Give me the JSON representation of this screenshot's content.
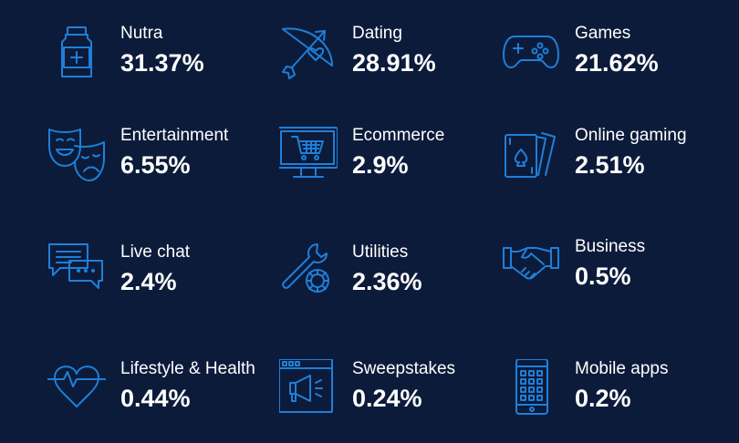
{
  "accent_color": "#1f7fd8",
  "background_color": "#0c1b3a",
  "categories": [
    {
      "label": "Nutra",
      "value": "31.37%",
      "icon": "bottle-icon"
    },
    {
      "label": "Dating",
      "value": "28.91%",
      "icon": "bow-arrow-icon"
    },
    {
      "label": "Games",
      "value": "21.62%",
      "icon": "gamepad-icon"
    },
    {
      "label": "Entertainment",
      "value": "6.55%",
      "icon": "theater-masks-icon"
    },
    {
      "label": "Ecommerce",
      "value": "2.9%",
      "icon": "shopping-cart-monitor-icon"
    },
    {
      "label": "Online gaming",
      "value": "2.51%",
      "icon": "playing-cards-icon"
    },
    {
      "label": "Live chat",
      "value": "2.4%",
      "icon": "chat-bubbles-icon"
    },
    {
      "label": "Utilities",
      "value": "2.36%",
      "icon": "wrench-gear-icon"
    },
    {
      "label": "Business",
      "value": "0.5%",
      "icon": "handshake-icon"
    },
    {
      "label": "Lifestyle & Health",
      "value": "0.44%",
      "icon": "heart-pulse-icon"
    },
    {
      "label": "Sweepstakes",
      "value": "0.24%",
      "icon": "megaphone-window-icon"
    },
    {
      "label": "Mobile apps",
      "value": "0.2%",
      "icon": "mobile-phone-icon"
    }
  ]
}
